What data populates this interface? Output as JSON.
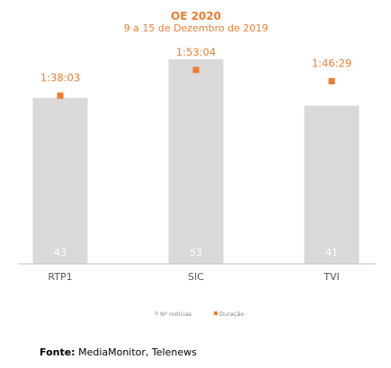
{
  "colors": {
    "accent": "#ED7D31",
    "bar": "#D9D9D9",
    "bar_label": "#FFFFFF",
    "axis": "#BFBFBF"
  },
  "chart_data": {
    "type": "bar",
    "title": "OE 2020",
    "subtitle": "9 a 15 de Dezembro de 2019",
    "categories": [
      "RTP1",
      "SIC",
      "TVI"
    ],
    "series": [
      {
        "name": "Nº notícias",
        "type": "bar",
        "values": [
          43,
          53,
          41
        ],
        "labels": [
          "43",
          "53",
          "41"
        ]
      },
      {
        "name": "Duração",
        "type": "scatter",
        "values": [
          "1:38:03",
          "1:53:04",
          "1:46:29"
        ],
        "values_seconds": [
          5883,
          6784,
          6389
        ],
        "labels": [
          "1:38:03",
          "1:53:04",
          "1:46:29"
        ]
      }
    ],
    "ylim": [
      0,
      60
    ],
    "duration_ylim_seconds": [
      0,
      8100
    ],
    "grid": false,
    "legend_position": "bottom"
  },
  "footer": {
    "source_label": "Fonte:",
    "source_text": " MediaMonitor, Telenews"
  }
}
